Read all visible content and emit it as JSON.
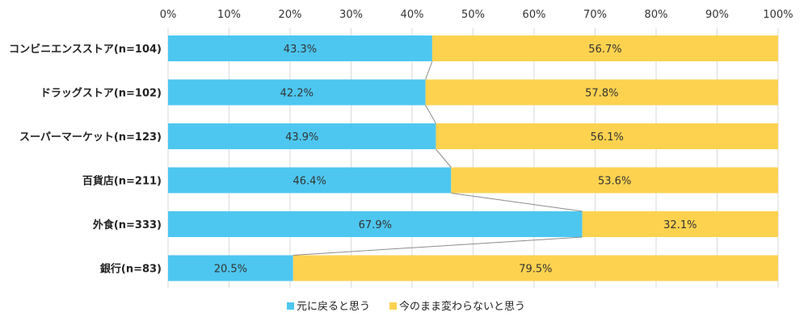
{
  "chart_data": {
    "type": "bar",
    "orientation": "horizontal",
    "stacked": "percent",
    "categories": [
      "コンビニエンスストア(n=104)",
      "ドラッグストア(n=102)",
      "スーパーマーケット(n=123)",
      "百貨店(n=211)",
      "外食(n=333)",
      "銀行(n=83)"
    ],
    "series": [
      {
        "name": "元に戻ると思う",
        "values": [
          43.3,
          42.2,
          43.9,
          46.4,
          67.9,
          20.5
        ],
        "color": "#4DC7F0"
      },
      {
        "name": "今のまま変わらないと思う",
        "values": [
          56.7,
          57.8,
          56.1,
          53.6,
          32.1,
          79.5
        ],
        "color": "#FDD24F"
      }
    ],
    "value_labels": [
      [
        "43.3%",
        "42.2%",
        "43.9%",
        "46.4%",
        "67.9%",
        "20.5%"
      ],
      [
        "56.7%",
        "57.8%",
        "56.1%",
        "53.6%",
        "32.1%",
        "79.5%"
      ]
    ],
    "x_ticks": [
      "0%",
      "10%",
      "20%",
      "30%",
      "40%",
      "50%",
      "60%",
      "70%",
      "80%",
      "90%",
      "100%"
    ],
    "xlim": [
      0,
      100
    ],
    "title": "",
    "xlabel": "",
    "ylabel": "",
    "grid": true,
    "legend_position": "bottom",
    "series_lines": true
  }
}
